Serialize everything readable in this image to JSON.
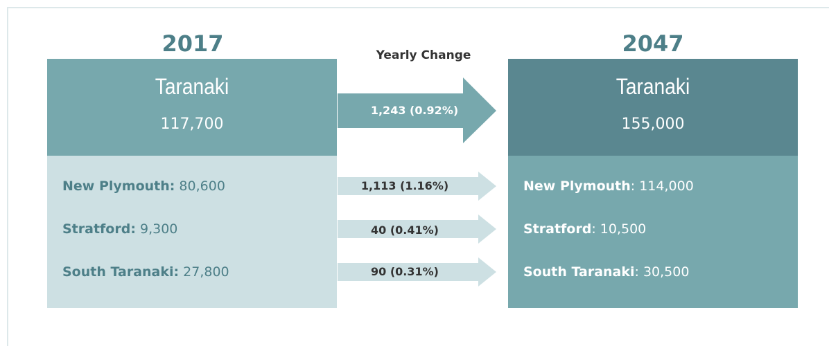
{
  "start": {
    "year": "2017",
    "region": "Taranaki",
    "population": "117,700",
    "districts": [
      {
        "name": "New Plymouth:",
        "population": "80,600"
      },
      {
        "name": "Stratford:",
        "population": "9,300"
      },
      {
        "name": "South Taranaki:",
        "population": "27,800"
      }
    ]
  },
  "change": {
    "title": "Yearly Change",
    "total": "1,243 (0.92%)",
    "districts": [
      "1,113 (1.16%)",
      "40 (0.41%)",
      "90 (0.31%)"
    ]
  },
  "end": {
    "year": "2047",
    "region": "Taranaki",
    "population": "155,000",
    "districts": [
      {
        "name": "New Plymouth",
        "population": ": 114,000"
      },
      {
        "name": "Stratford",
        "population": ": 10,500"
      },
      {
        "name": "South Taranaki",
        "population": ": 30,500"
      }
    ]
  }
}
